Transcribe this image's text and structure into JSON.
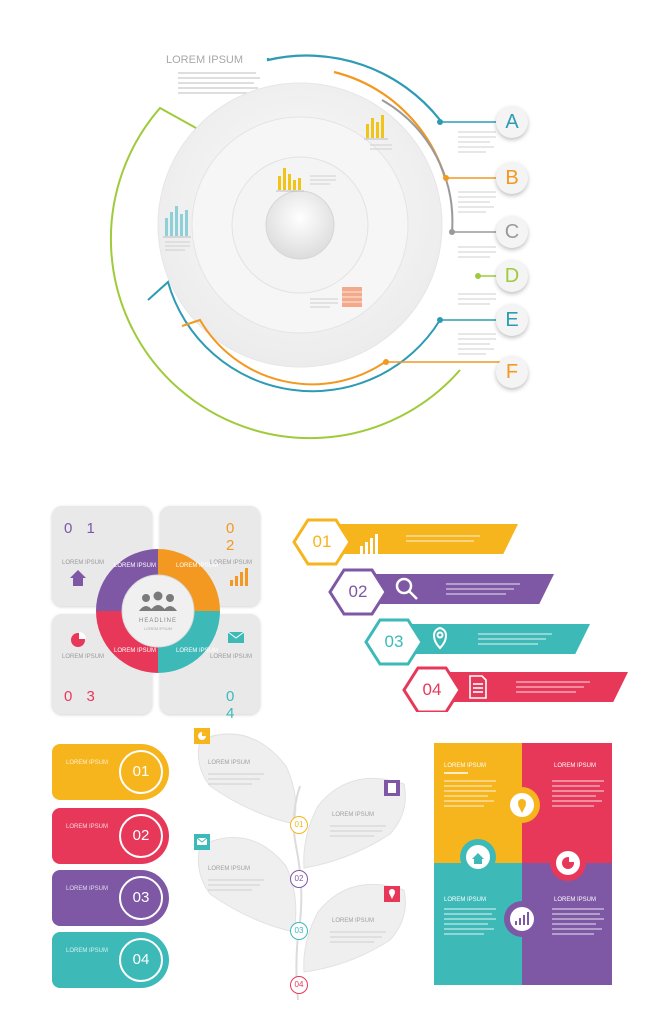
{
  "colors": {
    "yellow": "#f6b51c",
    "orange": "#f39820",
    "purple": "#7e57a5",
    "teal": "#3dbab8",
    "red": "#e8385a",
    "green": "#9fcb3a",
    "blue": "#2e9bb5",
    "gray": "#b9b9b9"
  },
  "ring": {
    "title": "LOREM IPSUM",
    "letters": [
      "A",
      "B",
      "C",
      "D",
      "E",
      "F"
    ]
  },
  "squares": {
    "nums": [
      "0 1",
      "0 2",
      "0 3",
      "0 4"
    ],
    "label": "LOREM IPSUM",
    "center_title": "HEADLINE",
    "center_sub": "LOREM IPSUM",
    "quad_label": "LOREM IPSUM"
  },
  "ribbons": {
    "nums": [
      "01",
      "02",
      "03",
      "04"
    ]
  },
  "pills": {
    "label": "LOREM IPSUM",
    "nums": [
      "01",
      "02",
      "03",
      "04"
    ]
  },
  "tree": {
    "label": "LOREM IPSUM",
    "nums": [
      "01",
      "02",
      "03",
      "04"
    ]
  },
  "quad": {
    "label": "LOREM IPSUM"
  },
  "icons": [
    "home-icon",
    "bar-chart-icon",
    "pie-chart-icon",
    "mail-icon",
    "search-icon",
    "location-pin-icon",
    "document-icon",
    "people-icon"
  ]
}
